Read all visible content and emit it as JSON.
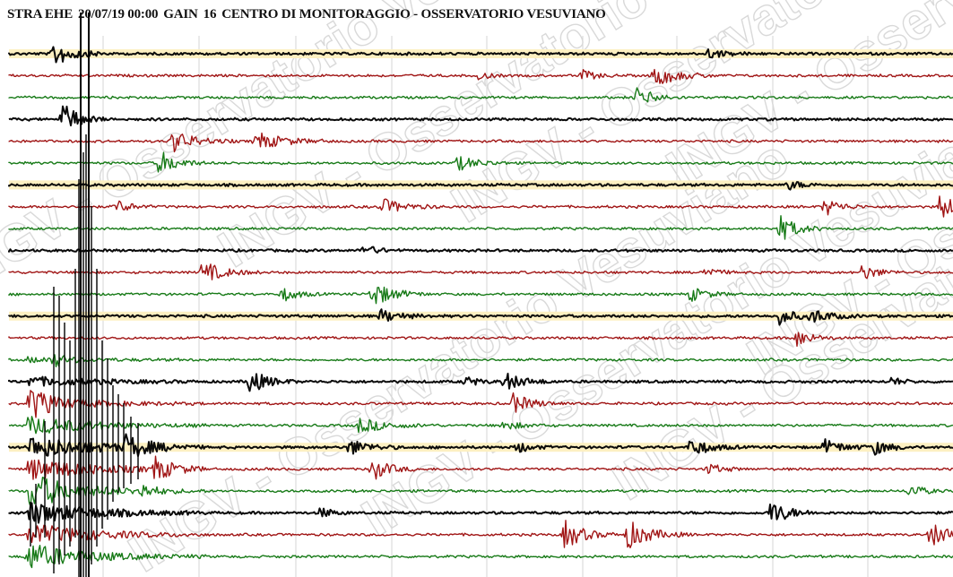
{
  "header": {
    "station": "STRA EHE",
    "datetime": "20/07/19 00:00",
    "gain_label": "GAIN",
    "gain_value": "16",
    "center": "CENTRO DI MONITORAGGIO - OSSERVATORIO VESUVIANO"
  },
  "watermark": "INGV - Osservatorio Vesuviano",
  "colors": {
    "black_trace": "#0a0a0a",
    "red_trace": "#a01515",
    "green_trace": "#177a17",
    "highlight": "#fdf0c2",
    "grid": "#d6d6d6",
    "minute_marks": "#000000"
  },
  "trace_colors": [
    "black",
    "red",
    "green"
  ],
  "trace_count": 24
}
